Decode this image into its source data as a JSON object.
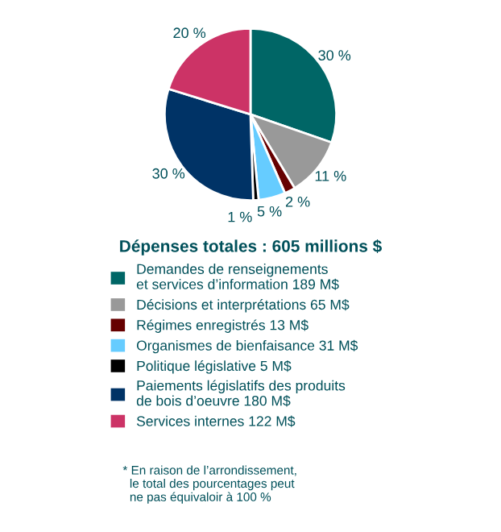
{
  "chart_data": {
    "type": "pie",
    "title": "Dépenses totales : 605 millions $",
    "categories": [
      "Demandes de renseignements\net services d’information 189 M$",
      "Décisions et interprétations 65 M$",
      "Régimes enregistrés 13 M$",
      "Organismes de bienfaisance 31 M$",
      "Politique législative 5 M$",
      "Paiements législatifs des produits\nde bois d’oeuvre 180 M$",
      "Services internes 122 M$"
    ],
    "values": [
      30,
      11,
      2,
      5,
      1,
      30,
      20
    ],
    "value_labels": [
      "30 %",
      "11 %",
      "2 %",
      "5 %",
      "1 %",
      "30 %",
      "20 %"
    ],
    "colors": [
      "#006666",
      "#999999",
      "#660000",
      "#66ccff",
      "#000000",
      "#003366",
      "#cc3366"
    ],
    "legend": "bottom",
    "annotations": [
      "* En raison de l’arrondissement,\n  le total des pourcentages peut\n  ne pas équivaloir à 100 %"
    ]
  }
}
